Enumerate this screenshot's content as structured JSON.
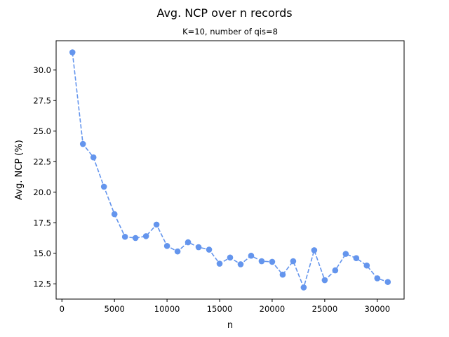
{
  "figure": {
    "suptitle": "Avg. NCP over n records"
  },
  "chart_data": {
    "type": "line",
    "title": "K=10, number of qis=8",
    "xlabel": "n",
    "ylabel": "Avg. NCP (%)",
    "xlim": [
      -550,
      32550
    ],
    "ylim": [
      11.25,
      32.4
    ],
    "xticks": [
      0,
      5000,
      10000,
      15000,
      20000,
      25000,
      30000
    ],
    "xtick_labels": [
      "0",
      "5000",
      "10000",
      "15000",
      "20000",
      "25000",
      "30000"
    ],
    "yticks": [
      12.5,
      15.0,
      17.5,
      20.0,
      22.5,
      25.0,
      27.5,
      30.0
    ],
    "ytick_labels": [
      "12.5",
      "15.0",
      "17.5",
      "20.0",
      "22.5",
      "25.0",
      "27.5",
      "30.0"
    ],
    "grid": false,
    "series": [
      {
        "color": "#6495ED",
        "line_style": "dashed",
        "marker": "circle",
        "x": [
          1000,
          2000,
          3000,
          4000,
          5000,
          6000,
          7000,
          8000,
          9000,
          10000,
          11000,
          12000,
          13000,
          14000,
          15000,
          16000,
          17000,
          18000,
          19000,
          20000,
          21000,
          22000,
          23000,
          24000,
          25000,
          26000,
          27000,
          28000,
          29000,
          30000,
          31000
        ],
        "y": [
          31.45,
          23.95,
          22.85,
          20.45,
          18.2,
          16.35,
          16.25,
          16.4,
          17.35,
          15.6,
          15.15,
          15.9,
          15.5,
          15.3,
          14.15,
          14.65,
          14.1,
          14.8,
          14.35,
          14.3,
          13.25,
          14.35,
          12.2,
          15.25,
          12.8,
          13.6,
          14.95,
          14.6,
          14.0,
          12.95,
          12.65
        ]
      }
    ]
  }
}
